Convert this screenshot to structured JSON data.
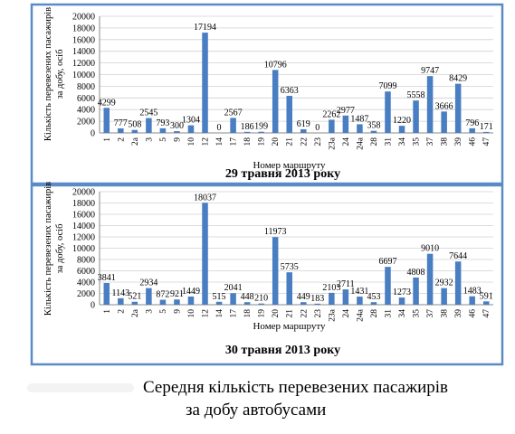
{
  "caption": {
    "line1": "Середня кількість перевезених пасажирів",
    "line2": "за добу автобусами"
  },
  "colors": {
    "bar": "#4a7ec2",
    "frame": "#5b8bc7",
    "grid": "#d0d0d0"
  },
  "chart_data": [
    {
      "type": "bar",
      "title": "29 травня 2013 року",
      "xlabel": "Номер маршруту",
      "ylabel": "Кількість перевезених пасажирів за добу, осіб",
      "ylim": [
        0,
        20000
      ],
      "yticks": [
        0,
        2000,
        4000,
        6000,
        8000,
        10000,
        12000,
        14000,
        16000,
        18000,
        20000
      ],
      "categories": [
        "1",
        "2",
        "2а",
        "3",
        "5",
        "9",
        "10",
        "12",
        "14",
        "17",
        "18",
        "19",
        "20",
        "21",
        "22",
        "23",
        "23а",
        "24",
        "24а",
        "28",
        "31",
        "34",
        "35",
        "37",
        "38",
        "39",
        "46",
        "47"
      ],
      "values": [
        4299,
        777,
        508,
        2545,
        793,
        300,
        1304,
        17194,
        0,
        2567,
        186,
        199,
        10796,
        6363,
        619,
        0,
        2262,
        2977,
        1487,
        358,
        7099,
        1220,
        5558,
        9747,
        3666,
        8429,
        796,
        171
      ],
      "labels": [
        "4299",
        "777",
        "508",
        "2545",
        "793",
        "300",
        "1304",
        "17194",
        "0",
        "2567",
        "186",
        "199",
        "10796",
        "6363",
        "619",
        "0",
        "2262",
        "2977",
        "1487",
        "358",
        "7099",
        "1220",
        "5558",
        "9747",
        "3666",
        "8429",
        "796",
        "171"
      ],
      "grid": true,
      "legend": "none"
    },
    {
      "type": "bar",
      "title": "30 травня 2013 року",
      "xlabel": "Номер маршруту",
      "ylabel": "Кількість перевезених пасажирів за добу, осіб",
      "ylim": [
        0,
        20000
      ],
      "yticks": [
        0,
        2000,
        4000,
        6000,
        8000,
        10000,
        12000,
        14000,
        16000,
        18000,
        20000
      ],
      "categories": [
        "1",
        "2",
        "2а",
        "3",
        "5",
        "9",
        "10",
        "12",
        "14",
        "17",
        "18",
        "19",
        "20",
        "21",
        "22",
        "23",
        "23а",
        "24",
        "24а",
        "28",
        "31",
        "34",
        "35",
        "37",
        "38",
        "39",
        "46",
        "47"
      ],
      "values": [
        3841,
        1143,
        521,
        2934,
        872,
        921,
        1449,
        18037,
        515,
        2041,
        448,
        210,
        11973,
        5735,
        449,
        183,
        2103,
        2711,
        1431,
        453,
        6697,
        1273,
        4808,
        9010,
        2932,
        7644,
        1483,
        591
      ],
      "labels": [
        "3841",
        "1143",
        "521",
        "2934",
        "872",
        "921",
        "1449",
        "18037",
        "515",
        "2041",
        "448",
        "210",
        "11973",
        "5735",
        "449",
        "183",
        "2103",
        "2711",
        "1431",
        "453",
        "6697",
        "1273",
        "4808",
        "9010",
        "2932",
        "7644",
        "1483",
        "591"
      ],
      "grid": true,
      "legend": "none"
    }
  ]
}
